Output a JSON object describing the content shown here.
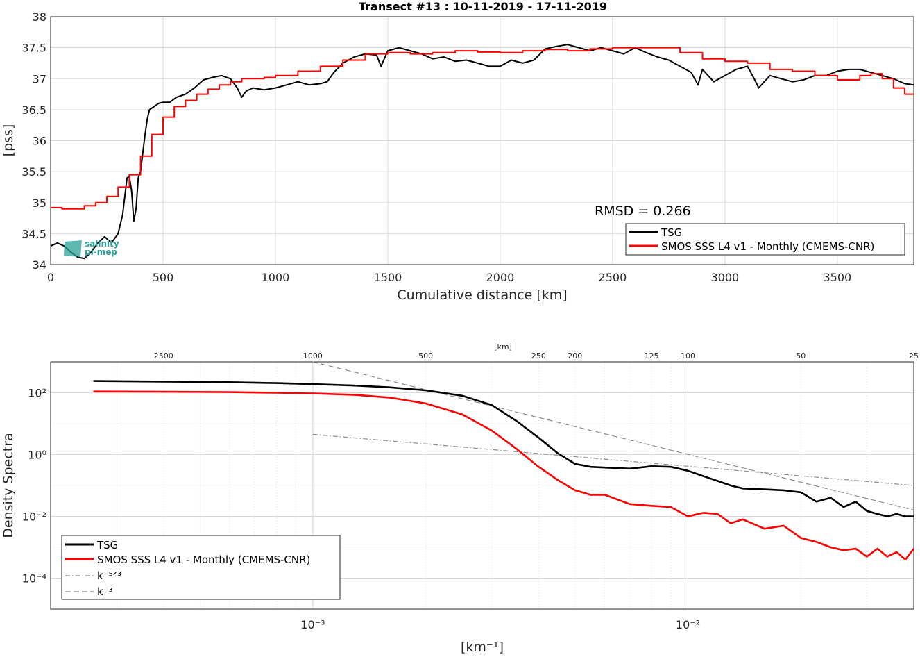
{
  "colors": {
    "tsg": "#000000",
    "smos": "#ff0000",
    "ref": "#8c8c8c",
    "logo": "#2aa198"
  },
  "logo": {
    "line1": "salinity",
    "line2": "pi-mep"
  },
  "chart_data": [
    {
      "type": "line",
      "title": "Transect #13 : 10-11-2019 - 17-11-2019",
      "xlabel": "Cumulative distance [km]",
      "ylabel": "[pss]",
      "xlim": [
        0,
        3840
      ],
      "ylim": [
        34,
        38
      ],
      "xticks": [
        "0",
        "500",
        "1000",
        "1500",
        "2000",
        "2500",
        "3000",
        "3500"
      ],
      "yticks": [
        "34",
        "34.5",
        "35",
        "35.5",
        "36",
        "36.5",
        "37",
        "37.5",
        "38"
      ],
      "grid": true,
      "annotation": "RMSD = 0.266",
      "legend": {
        "placement": "bottom-right",
        "entries": [
          "TSG",
          "SMOS SSS L4 v1 - Monthly (CMEMS-CNR)"
        ]
      },
      "series": [
        {
          "name": "TSG",
          "x": [
            0,
            30,
            60,
            90,
            120,
            150,
            180,
            210,
            240,
            270,
            300,
            320,
            340,
            350,
            360,
            370,
            380,
            390,
            400,
            410,
            420,
            430,
            440,
            460,
            480,
            500,
            530,
            560,
            600,
            640,
            680,
            720,
            760,
            800,
            830,
            850,
            870,
            900,
            950,
            1000,
            1050,
            1100,
            1150,
            1200,
            1230,
            1260,
            1300,
            1350,
            1400,
            1450,
            1470,
            1500,
            1550,
            1600,
            1650,
            1700,
            1750,
            1800,
            1850,
            1900,
            1950,
            2000,
            2050,
            2100,
            2150,
            2200,
            2250,
            2300,
            2350,
            2400,
            2450,
            2500,
            2550,
            2600,
            2650,
            2700,
            2750,
            2800,
            2850,
            2880,
            2900,
            2950,
            3000,
            3050,
            3100,
            3130,
            3150,
            3200,
            3250,
            3300,
            3350,
            3400,
            3450,
            3500,
            3550,
            3600,
            3650,
            3700,
            3750,
            3800,
            3840
          ],
          "values": [
            34.3,
            34.35,
            34.3,
            34.2,
            34.12,
            34.1,
            34.2,
            34.35,
            34.45,
            34.35,
            34.5,
            34.8,
            35.4,
            35.42,
            35.2,
            34.7,
            34.9,
            35.4,
            35.5,
            35.8,
            36.1,
            36.35,
            36.5,
            36.55,
            36.6,
            36.62,
            36.62,
            36.7,
            36.75,
            36.85,
            36.98,
            37.02,
            37.05,
            37.0,
            36.85,
            36.7,
            36.8,
            36.85,
            36.82,
            36.85,
            36.9,
            36.95,
            36.9,
            36.92,
            36.95,
            37.1,
            37.25,
            37.35,
            37.4,
            37.38,
            37.2,
            37.45,
            37.5,
            37.45,
            37.4,
            37.32,
            37.35,
            37.28,
            37.3,
            37.25,
            37.2,
            37.2,
            37.3,
            37.25,
            37.3,
            37.48,
            37.52,
            37.55,
            37.5,
            37.45,
            37.5,
            37.45,
            37.4,
            37.5,
            37.42,
            37.35,
            37.3,
            37.2,
            37.1,
            36.9,
            37.15,
            36.95,
            37.05,
            37.15,
            37.2,
            37.0,
            36.85,
            37.05,
            37.0,
            36.95,
            36.98,
            37.05,
            37.05,
            37.12,
            37.15,
            37.15,
            37.1,
            37.05,
            37.0,
            36.92,
            36.9
          ]
        },
        {
          "name": "SMOS SSS L4 v1 - Monthly (CMEMS-CNR)",
          "x": [
            0,
            50,
            100,
            150,
            200,
            250,
            300,
            350,
            400,
            450,
            500,
            550,
            600,
            650,
            700,
            750,
            800,
            850,
            900,
            950,
            1000,
            1100,
            1200,
            1300,
            1400,
            1500,
            1600,
            1700,
            1800,
            1900,
            2000,
            2100,
            2200,
            2300,
            2400,
            2500,
            2600,
            2700,
            2800,
            2900,
            3000,
            3100,
            3200,
            3300,
            3400,
            3500,
            3600,
            3650,
            3700,
            3750,
            3800,
            3840
          ],
          "values": [
            34.92,
            34.9,
            34.9,
            34.95,
            35.0,
            35.1,
            35.25,
            35.45,
            35.75,
            36.1,
            36.38,
            36.55,
            36.65,
            36.75,
            36.83,
            36.9,
            36.95,
            37.0,
            37.0,
            37.02,
            37.05,
            37.12,
            37.2,
            37.3,
            37.4,
            37.42,
            37.4,
            37.42,
            37.45,
            37.43,
            37.42,
            37.45,
            37.47,
            37.45,
            37.48,
            37.5,
            37.5,
            37.5,
            37.42,
            37.32,
            37.28,
            37.25,
            37.15,
            37.12,
            37.05,
            36.98,
            37.05,
            37.08,
            37.0,
            36.85,
            36.75,
            36.75
          ]
        }
      ]
    },
    {
      "type": "line",
      "title": "",
      "xlabel": "[km⁻¹]",
      "ylabel": "Density Spectra",
      "top_axis_label": "[km]",
      "x_scale": "log",
      "y_scale": "log",
      "xlim": [
        0.0002,
        0.04
      ],
      "ylim": [
        1e-05,
        1000
      ],
      "xticks": [
        "10⁻³",
        "10⁻²"
      ],
      "yticks": [
        "10⁻⁴",
        "10⁻²",
        "10⁰",
        "10²"
      ],
      "top_ticks": [
        "2500",
        "1000",
        "500",
        "250",
        "200",
        "125",
        "100",
        "50",
        "25"
      ],
      "grid": true,
      "legend": {
        "placement": "bottom-left",
        "entries": [
          "TSG",
          "SMOS SSS L4 v1 - Monthly (CMEMS-CNR)",
          "k⁻⁵ᐟ³",
          "k⁻³"
        ]
      },
      "series": [
        {
          "name": "TSG",
          "x": [
            0.00026,
            0.0004,
            0.0006,
            0.0008,
            0.001,
            0.0013,
            0.0016,
            0.002,
            0.0025,
            0.003,
            0.0035,
            0.004,
            0.0045,
            0.005,
            0.0055,
            0.006,
            0.007,
            0.008,
            0.009,
            0.01,
            0.011,
            0.012,
            0.013,
            0.014,
            0.016,
            0.018,
            0.02,
            0.022,
            0.024,
            0.026,
            0.028,
            0.03,
            0.032,
            0.034,
            0.036,
            0.038,
            0.04
          ],
          "values": [
            240,
            230,
            220,
            205,
            190,
            170,
            150,
            120,
            80,
            40,
            12,
            3.5,
            1.1,
            0.5,
            0.4,
            0.38,
            0.35,
            0.42,
            0.4,
            0.3,
            0.2,
            0.14,
            0.1,
            0.08,
            0.075,
            0.07,
            0.06,
            0.03,
            0.04,
            0.02,
            0.03,
            0.015,
            0.012,
            0.01,
            0.012,
            0.01,
            0.01
          ]
        },
        {
          "name": "SMOS SSS L4 v1 - Monthly (CMEMS-CNR)",
          "x": [
            0.00026,
            0.0004,
            0.0006,
            0.0008,
            0.001,
            0.0013,
            0.0016,
            0.002,
            0.0025,
            0.003,
            0.0035,
            0.004,
            0.0045,
            0.005,
            0.0055,
            0.006,
            0.007,
            0.008,
            0.009,
            0.01,
            0.011,
            0.012,
            0.013,
            0.014,
            0.016,
            0.018,
            0.02,
            0.022,
            0.024,
            0.026,
            0.028,
            0.03,
            0.032,
            0.034,
            0.036,
            0.038,
            0.04
          ],
          "values": [
            110,
            108,
            105,
            100,
            95,
            85,
            70,
            45,
            20,
            6,
            1.5,
            0.4,
            0.15,
            0.07,
            0.05,
            0.05,
            0.025,
            0.022,
            0.02,
            0.01,
            0.013,
            0.012,
            0.006,
            0.008,
            0.004,
            0.005,
            0.002,
            0.0015,
            0.001,
            0.0008,
            0.0009,
            0.0005,
            0.0009,
            0.0005,
            0.0007,
            0.0004,
            0.0009
          ]
        },
        {
          "name": "k⁻⁵ᐟ³",
          "x": [
            0.001,
            0.04
          ],
          "values": [
            4.5,
            0.1
          ]
        },
        {
          "name": "k⁻³",
          "x": [
            0.001,
            0.04
          ],
          "values": [
            1000,
            0.016
          ]
        }
      ]
    }
  ]
}
